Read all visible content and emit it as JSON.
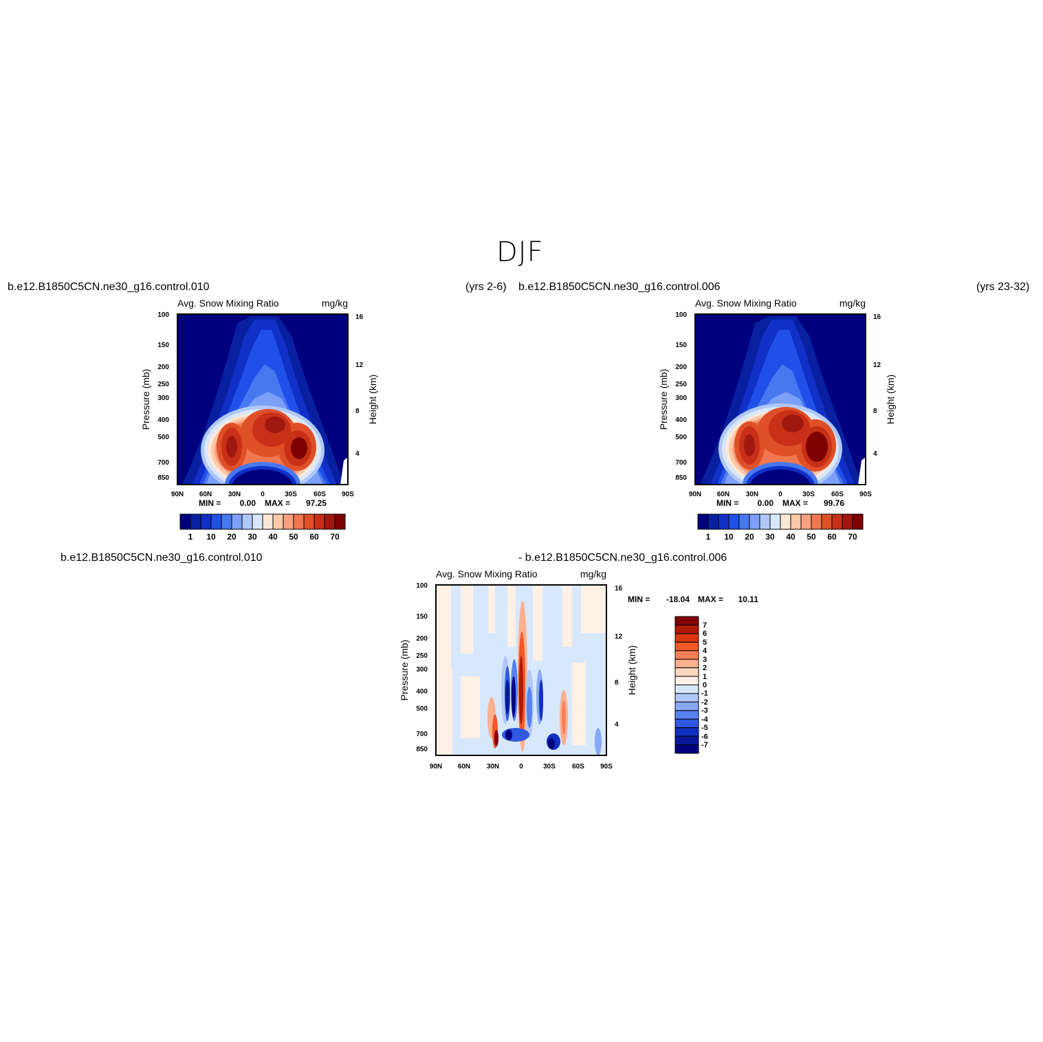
{
  "figure": {
    "title": "DJF",
    "top_left_case": "b.e12.B1850C5CN.ne30_g16.control.010",
    "top_left_years": "(yrs  2-6)",
    "top_right_case": "b.e12.B1850C5CN.ne30_g16.control.006",
    "top_right_years": "(yrs  23-32)",
    "bottom_case_a": "b.e12.B1850C5CN.ne30_g16.control.010",
    "bottom_case_b": "-  b.e12.B1850C5CN.ne30_g16.control.006"
  },
  "chart_data": [
    {
      "id": "panel-left",
      "type": "heatmap",
      "title": "Avg.  Snow  Mixing  Ratio",
      "units": "mg/kg",
      "ylabel": "Pressure  (mb)",
      "ylabel_right": "Height  (km)",
      "x_ticks": [
        "90N",
        "60N",
        "30N",
        "0",
        "30S",
        "60S",
        "90S"
      ],
      "y_ticks": [
        "100",
        "150",
        "200",
        "250",
        "300",
        "400",
        "500",
        "700",
        "850"
      ],
      "y_ticks_right": [
        "16",
        "12",
        "8",
        "4"
      ],
      "ylim": [
        1000,
        100
      ],
      "y_scale": "log",
      "min_label": "MIN =",
      "min_value": "0.00",
      "max_label": "MAX =",
      "max_value": "97.25",
      "colorbar": {
        "orientation": "horizontal",
        "labels": [
          "1",
          "10",
          "20",
          "30",
          "40",
          "50",
          "60",
          "70"
        ],
        "colors": [
          "#00007f",
          "#0820a0",
          "#1030c8",
          "#2050e8",
          "#4878f0",
          "#7ca0f8",
          "#b0c8f8",
          "#d8e8fc",
          "#fde8d8",
          "#fcc8a8",
          "#f8a080",
          "#f07850",
          "#e05028",
          "#c83018",
          "#a01810",
          "#7f0000"
        ]
      },
      "features": [
        {
          "shape": "dome",
          "lat_range": [
            "60N",
            "60S"
          ],
          "top_mb": 100,
          "color": "#1038d8"
        },
        {
          "shape": "max",
          "lat": "35N",
          "mb": 600,
          "value": 70
        },
        {
          "shape": "max",
          "lat": "15S",
          "mb": 450,
          "value": 70
        },
        {
          "shape": "max",
          "lat": "40S",
          "mb": 620,
          "value": 97.25
        },
        {
          "shape": "min",
          "lat_range": [
            "30N",
            "30S"
          ],
          "mb_range": [
            800,
            1000
          ],
          "value": 0
        }
      ]
    },
    {
      "id": "panel-right",
      "type": "heatmap",
      "title": "Avg.  Snow  Mixing  Ratio",
      "units": "mg/kg",
      "ylabel": "Pressure  (mb)",
      "ylabel_right": "Height  (km)",
      "x_ticks": [
        "90N",
        "60N",
        "30N",
        "0",
        "30S",
        "60S",
        "90S"
      ],
      "y_ticks": [
        "100",
        "150",
        "200",
        "250",
        "300",
        "400",
        "500",
        "700",
        "850"
      ],
      "y_ticks_right": [
        "16",
        "12",
        "8",
        "4"
      ],
      "ylim": [
        1000,
        100
      ],
      "y_scale": "log",
      "min_label": "MIN =",
      "min_value": "0.00",
      "max_label": "MAX =",
      "max_value": "99.76",
      "colorbar": {
        "orientation": "horizontal",
        "labels": [
          "1",
          "10",
          "20",
          "30",
          "40",
          "50",
          "60",
          "70"
        ],
        "colors": [
          "#00007f",
          "#0820a0",
          "#1030c8",
          "#2050e8",
          "#4878f0",
          "#7ca0f8",
          "#b0c8f8",
          "#d8e8fc",
          "#fde8d8",
          "#fcc8a8",
          "#f8a080",
          "#f07850",
          "#e05028",
          "#c83018",
          "#a01810",
          "#7f0000"
        ]
      },
      "features": [
        {
          "shape": "dome",
          "lat_range": [
            "60N",
            "60S"
          ],
          "top_mb": 100,
          "color": "#1038d8"
        },
        {
          "shape": "max",
          "lat": "35N",
          "mb": 600,
          "value": 70
        },
        {
          "shape": "max",
          "lat": "15S",
          "mb": 420,
          "value": 70
        },
        {
          "shape": "max",
          "lat": "40S",
          "mb": 600,
          "value": 99.76
        },
        {
          "shape": "min",
          "lat_range": [
            "30N",
            "30S"
          ],
          "mb_range": [
            800,
            1000
          ],
          "value": 0
        }
      ]
    },
    {
      "id": "panel-diff",
      "type": "heatmap",
      "title": "Avg.  Snow  Mixing  Ratio",
      "units": "mg/kg",
      "ylabel": "Pressure  (mb)",
      "ylabel_right": "Height  (km)",
      "x_ticks": [
        "90N",
        "60N",
        "30N",
        "0",
        "30S",
        "60S",
        "90S"
      ],
      "y_ticks": [
        "100",
        "150",
        "200",
        "250",
        "300",
        "400",
        "500",
        "700",
        "850"
      ],
      "y_ticks_right": [
        "16",
        "12",
        "8",
        "4"
      ],
      "ylim": [
        1000,
        100
      ],
      "y_scale": "log",
      "min_label": "MIN =",
      "min_value": "-18.04",
      "max_label": "MAX =",
      "max_value": "10.11",
      "colorbar": {
        "orientation": "vertical",
        "labels": [
          "7",
          "6",
          "5",
          "4",
          "3",
          "2",
          "1",
          "0",
          "-1",
          "-2",
          "-3",
          "-4",
          "-5",
          "-6",
          "-7"
        ],
        "colors": [
          "#7f0000",
          "#b01808",
          "#d83810",
          "#f05828",
          "#f88058",
          "#fcb090",
          "#fdd8c0",
          "#fff0e6",
          "#d8e8fc",
          "#b0c8f8",
          "#88a8f8",
          "#5880f0",
          "#3058e0",
          "#1030c0",
          "#081898",
          "#00007f"
        ]
      },
      "features": [
        {
          "shape": "max",
          "lat": "3N",
          "mb": 450,
          "value": 10.11
        },
        {
          "shape": "min",
          "lat": "18N",
          "mb": 550,
          "value": -18.04
        },
        {
          "shape": "min",
          "lat": "30S",
          "mb": 800,
          "value": -7
        }
      ]
    }
  ]
}
